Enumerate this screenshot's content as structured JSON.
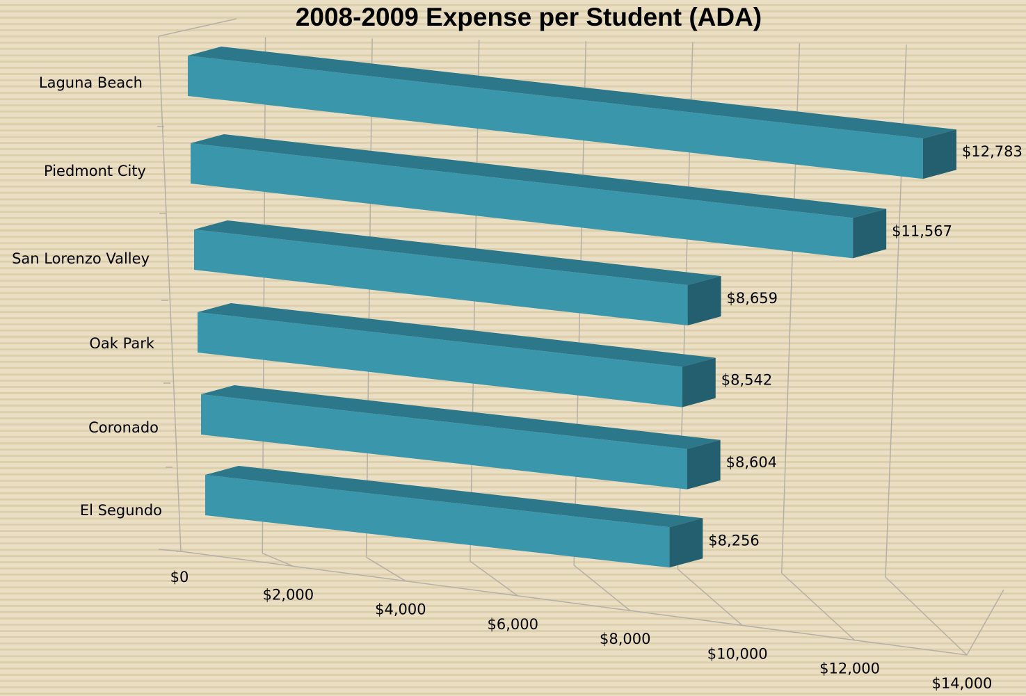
{
  "chart_data": {
    "type": "bar",
    "orientation": "horizontal",
    "style": "3d",
    "title": "2008-2009 Expense per Student (ADA)",
    "categories": [
      "Laguna Beach",
      "Piedmont City",
      "San Lorenzo Valley",
      "Oak Park",
      "Coronado",
      "El Segundo"
    ],
    "values": [
      12783,
      11567,
      8659,
      8542,
      8604,
      8256
    ],
    "value_labels": [
      "$12,783",
      "$11,567",
      "$8,659",
      "$8,542",
      "$8,604",
      "$8,256"
    ],
    "xlim": [
      0,
      14000
    ],
    "x_ticks": [
      0,
      2000,
      4000,
      6000,
      8000,
      10000,
      12000,
      14000
    ],
    "x_tick_labels": [
      "$0",
      "$2,000",
      "$4,000",
      "$6,000",
      "$8,000",
      "$10,000",
      "$12,000",
      "$14,000"
    ],
    "grid": true,
    "legend": "none",
    "colors": {
      "bar_front": "#3996ab",
      "bar_top": "#2c7789",
      "bar_side": "#245f6f",
      "grid": "#b5b0a6"
    }
  }
}
